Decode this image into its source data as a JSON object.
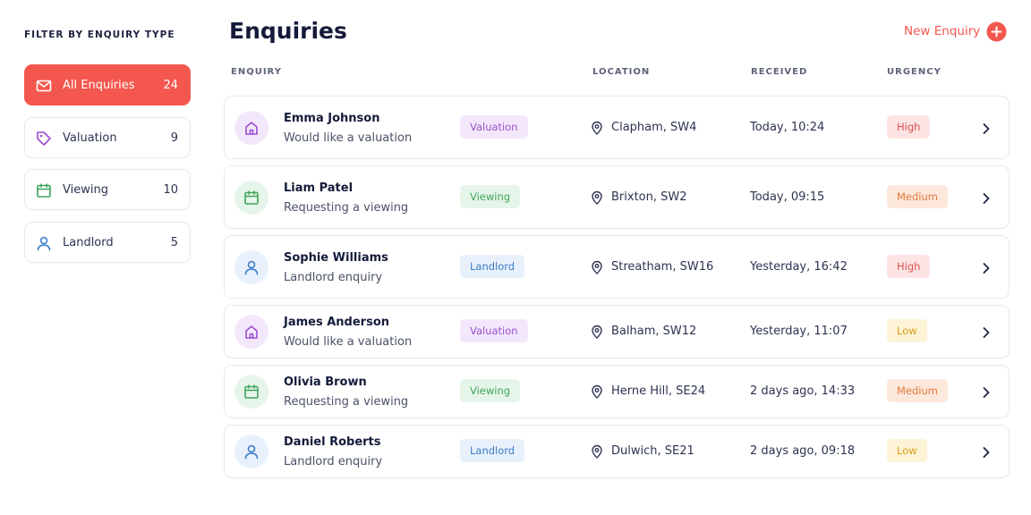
{
  "sidebar": {
    "title": "FILTER BY ENQUIRY TYPE",
    "filters": [
      {
        "label": "All Enquiries",
        "count": 24
      },
      {
        "label": "Valuation",
        "count": 9
      },
      {
        "label": "Viewing",
        "count": 10
      },
      {
        "label": "Landlord",
        "count": 5
      }
    ]
  },
  "header": {
    "title": "Enquiries",
    "action": "New Enquiry"
  },
  "table": {
    "columns": [
      "ENQUIRY",
      "LOCATION",
      "RECEIVED",
      "URGENCY"
    ],
    "rows": [
      {
        "name": "Emma Johnson",
        "description": "Would like a valuation",
        "type": "Valuation",
        "location": "Clapham, SW4",
        "received": "Today, 10:24",
        "urgency": "High"
      },
      {
        "name": "Liam Patel",
        "description": "Requesting a viewing",
        "type": "Viewing",
        "location": "Brixton, SW2",
        "received": "Today, 09:15",
        "urgency": "Medium"
      },
      {
        "name": "Sophie Williams",
        "description": "Landlord enquiry",
        "type": "Landlord",
        "location": "Streatham, SW16",
        "received": "Yesterday, 16:42",
        "urgency": "High"
      },
      {
        "name": "James Anderson",
        "description": "Would like a valuation",
        "type": "Valuation",
        "location": "Balham, SW12",
        "received": "Yesterday, 11:07",
        "urgency": "Low"
      },
      {
        "name": "Olivia Brown",
        "description": "Requesting a viewing",
        "type": "Viewing",
        "location": "Herne Hill, SE24",
        "received": "2 days ago, 14:33",
        "urgency": "Medium"
      },
      {
        "name": "Daniel Roberts",
        "description": "Landlord enquiry",
        "type": "Landlord",
        "location": "Dulwich, SE21",
        "received": "2 days ago, 09:18",
        "urgency": "Low"
      }
    ]
  }
}
